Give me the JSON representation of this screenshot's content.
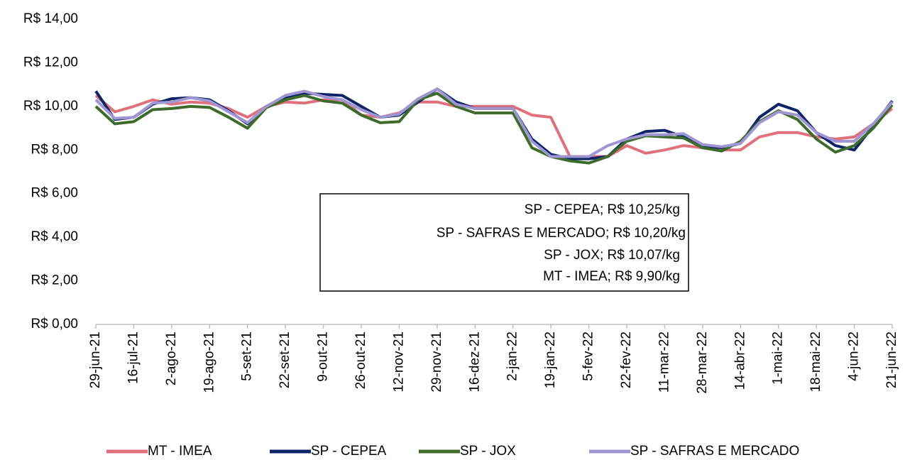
{
  "chart_data": {
    "type": "line",
    "categories": [
      "29-jun-21",
      null,
      "16-jul-21",
      null,
      "2-ago-21",
      null,
      "19-ago-21",
      null,
      "5-set-21",
      null,
      "22-set-21",
      null,
      "9-out-21",
      null,
      "26-out-21",
      null,
      "12-nov-21",
      null,
      "29-nov-21",
      null,
      "16-dez-21",
      null,
      "2-jan-22",
      null,
      "19-jan-22",
      null,
      "5-fev-22",
      null,
      "22-fev-22",
      null,
      "11-mar-22",
      null,
      "28-mar-22",
      null,
      "14-abr-22",
      null,
      "1-mai-22",
      null,
      "18-mai-22",
      null,
      "4-jun-22",
      null,
      "21-jun-22"
    ],
    "series": [
      {
        "name": "MT - IMEA",
        "color": "#e0717c",
        "values": [
          10.5,
          9.75,
          10.0,
          10.3,
          10.1,
          10.2,
          10.15,
          9.9,
          9.5,
          10.0,
          10.2,
          10.15,
          10.3,
          10.3,
          9.6,
          9.5,
          9.7,
          10.2,
          10.2,
          10.0,
          10.0,
          10.0,
          10.0,
          9.6,
          9.5,
          7.7,
          7.7,
          7.7,
          8.2,
          7.85,
          8.0,
          8.2,
          8.1,
          8.0,
          8.0,
          8.6,
          8.8,
          8.8,
          8.6,
          8.5,
          8.6,
          9.2,
          9.9
        ]
      },
      {
        "name": "SP - CEPEA",
        "color": "#0d2466",
        "values": [
          10.7,
          9.4,
          9.5,
          10.1,
          10.35,
          10.4,
          10.3,
          9.8,
          9.2,
          10.0,
          10.4,
          10.6,
          10.55,
          10.5,
          10.0,
          9.5,
          9.6,
          10.2,
          10.8,
          10.2,
          9.9,
          9.9,
          9.9,
          8.5,
          7.8,
          7.6,
          7.6,
          7.7,
          8.5,
          8.85,
          8.9,
          8.6,
          8.2,
          8.1,
          8.3,
          9.5,
          10.1,
          9.8,
          8.8,
          8.2,
          8.0,
          9.1,
          10.25
        ]
      },
      {
        "name": "SP - JOX",
        "color": "#3d6b2c",
        "values": [
          10.0,
          9.2,
          9.3,
          9.85,
          9.9,
          10.0,
          9.95,
          9.5,
          9.0,
          9.95,
          10.3,
          10.5,
          10.25,
          10.15,
          9.6,
          9.25,
          9.3,
          10.3,
          10.6,
          10.0,
          9.7,
          9.7,
          9.7,
          8.1,
          7.7,
          7.5,
          7.4,
          7.7,
          8.4,
          8.65,
          8.6,
          8.55,
          8.1,
          7.95,
          8.4,
          9.3,
          9.8,
          9.4,
          8.5,
          7.9,
          8.2,
          9.0,
          10.07
        ]
      },
      {
        "name": "SP - SAFRAS E MERCADO",
        "color": "#a096d2",
        "values": [
          10.3,
          9.45,
          9.5,
          10.15,
          10.2,
          10.4,
          10.25,
          9.75,
          9.25,
          10.0,
          10.5,
          10.7,
          10.45,
          10.3,
          9.85,
          9.5,
          9.65,
          10.35,
          10.8,
          10.1,
          9.9,
          9.9,
          9.9,
          8.4,
          7.7,
          7.7,
          7.7,
          8.2,
          8.5,
          8.7,
          8.7,
          8.75,
          8.25,
          8.15,
          8.3,
          9.25,
          9.75,
          9.6,
          8.8,
          8.4,
          8.4,
          9.2,
          10.2
        ]
      }
    ],
    "ylim": [
      0,
      14
    ],
    "yticks": [
      {
        "value": 0,
        "label": "R$ 0,00"
      },
      {
        "value": 2,
        "label": "R$ 2,00"
      },
      {
        "value": 4,
        "label": "R$ 4,00"
      },
      {
        "value": 6,
        "label": "R$ 6,00"
      },
      {
        "value": 8,
        "label": "R$ 8,00"
      },
      {
        "value": 10,
        "label": "R$ 10,00"
      },
      {
        "value": 12,
        "label": "R$ 12,00"
      },
      {
        "value": 14,
        "label": "R$ 14,00"
      }
    ],
    "annotations": [
      "SP - CEPEA; R$ 10,25/kg",
      "SP - SAFRAS E MERCADO; R$ 10,20/kg",
      "SP - JOX; R$ 10,07/kg",
      "MT - IMEA; R$ 9,90/kg"
    ],
    "legend": "bottom",
    "grid": false
  }
}
